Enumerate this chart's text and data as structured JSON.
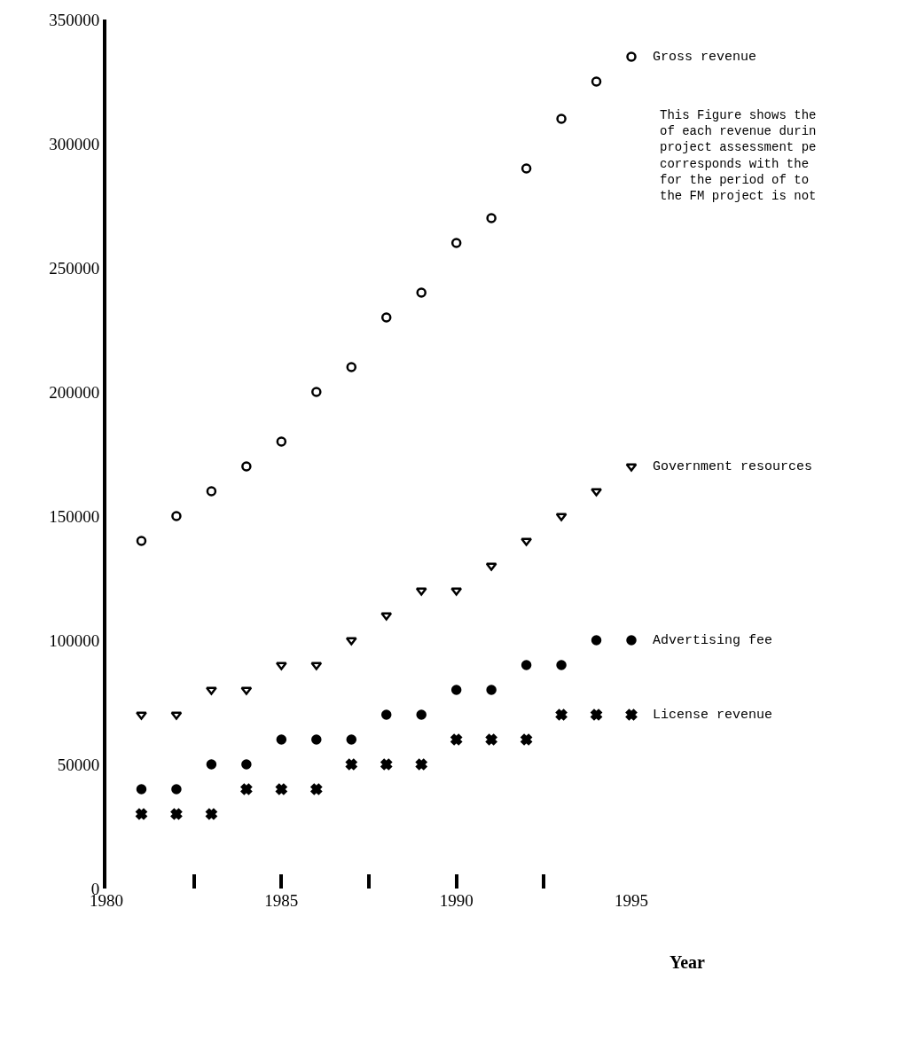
{
  "chart_data": {
    "type": "scatter",
    "xlabel": "Year",
    "x": [
      1981,
      1982,
      1983,
      1984,
      1985,
      1986,
      1987,
      1988,
      1989,
      1990,
      1991,
      1992,
      1993,
      1994,
      1995
    ],
    "xlim": [
      1980,
      1995
    ],
    "xticks": [
      1980,
      {
        "value": 1982.5,
        "label": null
      },
      1985,
      {
        "value": 1987.5,
        "label": null
      },
      1990,
      {
        "value": 1992.5,
        "label": null
      },
      1995
    ],
    "ylim": [
      0,
      350000
    ],
    "yticks": [
      0,
      50000,
      100000,
      150000,
      200000,
      250000,
      300000,
      350000
    ],
    "legend": false,
    "series": [
      {
        "name": "Gross revenue",
        "color": "#000000",
        "marker": "circle-open",
        "values": [
          140000,
          150000,
          160000,
          170000,
          180000,
          200000,
          210000,
          230000,
          240000,
          260000,
          270000,
          290000,
          310000,
          325000,
          335000
        ]
      },
      {
        "name": "Government resources",
        "color": "#000000",
        "marker": "triangle-down-open",
        "values": [
          70000,
          70000,
          80000,
          80000,
          90000,
          90000,
          100000,
          110000,
          120000,
          120000,
          130000,
          140000,
          150000,
          160000,
          170000
        ]
      },
      {
        "name": "Advertising fee",
        "color": "#000000",
        "marker": "circle",
        "values": [
          40000,
          40000,
          50000,
          50000,
          60000,
          60000,
          60000,
          70000,
          70000,
          80000,
          80000,
          90000,
          90000,
          100000,
          100000
        ]
      },
      {
        "name": "License revenue",
        "color": "#000000",
        "marker": "x",
        "values": [
          30000,
          30000,
          30000,
          40000,
          40000,
          40000,
          50000,
          50000,
          50000,
          60000,
          60000,
          60000,
          70000,
          70000,
          70000
        ]
      }
    ],
    "annotations": [
      "This Figure shows the\nof each revenue durin\nproject assessment pe\ncorresponds with the\nfor the period of to\nthe FM project is not"
    ]
  }
}
